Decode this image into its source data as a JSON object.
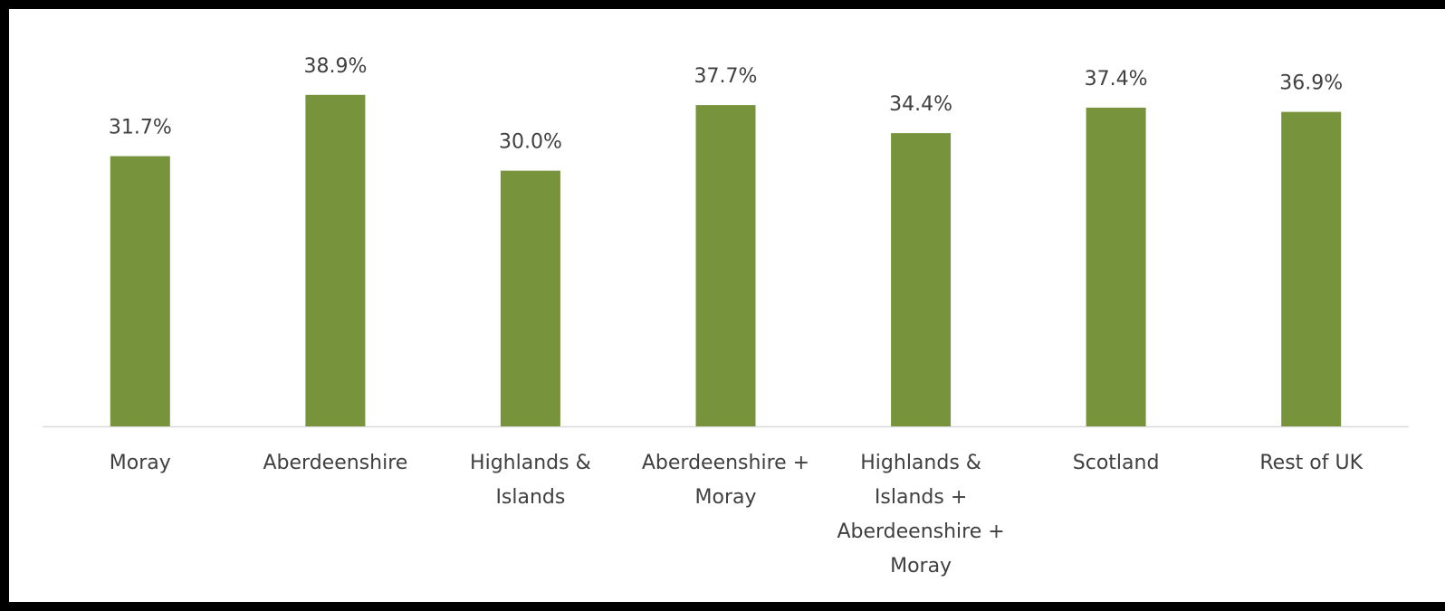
{
  "chart_data": {
    "type": "bar",
    "categories": [
      [
        "Moray"
      ],
      [
        "Aberdeenshire"
      ],
      [
        "Highlands &",
        "Islands"
      ],
      [
        "Aberdeenshire +",
        "Moray"
      ],
      [
        "Highlands &",
        "Islands +",
        "Aberdeenshire +",
        "Moray"
      ],
      [
        "Scotland"
      ],
      [
        "Rest of UK"
      ]
    ],
    "values": [
      31.7,
      38.9,
      30.0,
      37.7,
      34.4,
      37.4,
      36.9
    ],
    "value_labels": [
      "31.7%",
      "38.9%",
      "30.0%",
      "37.7%",
      "34.4%",
      "37.4%",
      "36.9%"
    ],
    "title": "",
    "xlabel": "",
    "ylabel": "",
    "ylim": [
      0,
      40
    ],
    "grid": false,
    "legend": "none",
    "colors": {
      "bar": "#77933c",
      "axis": "#d9d9d9",
      "text": "#404040",
      "frame": "#000000"
    }
  }
}
